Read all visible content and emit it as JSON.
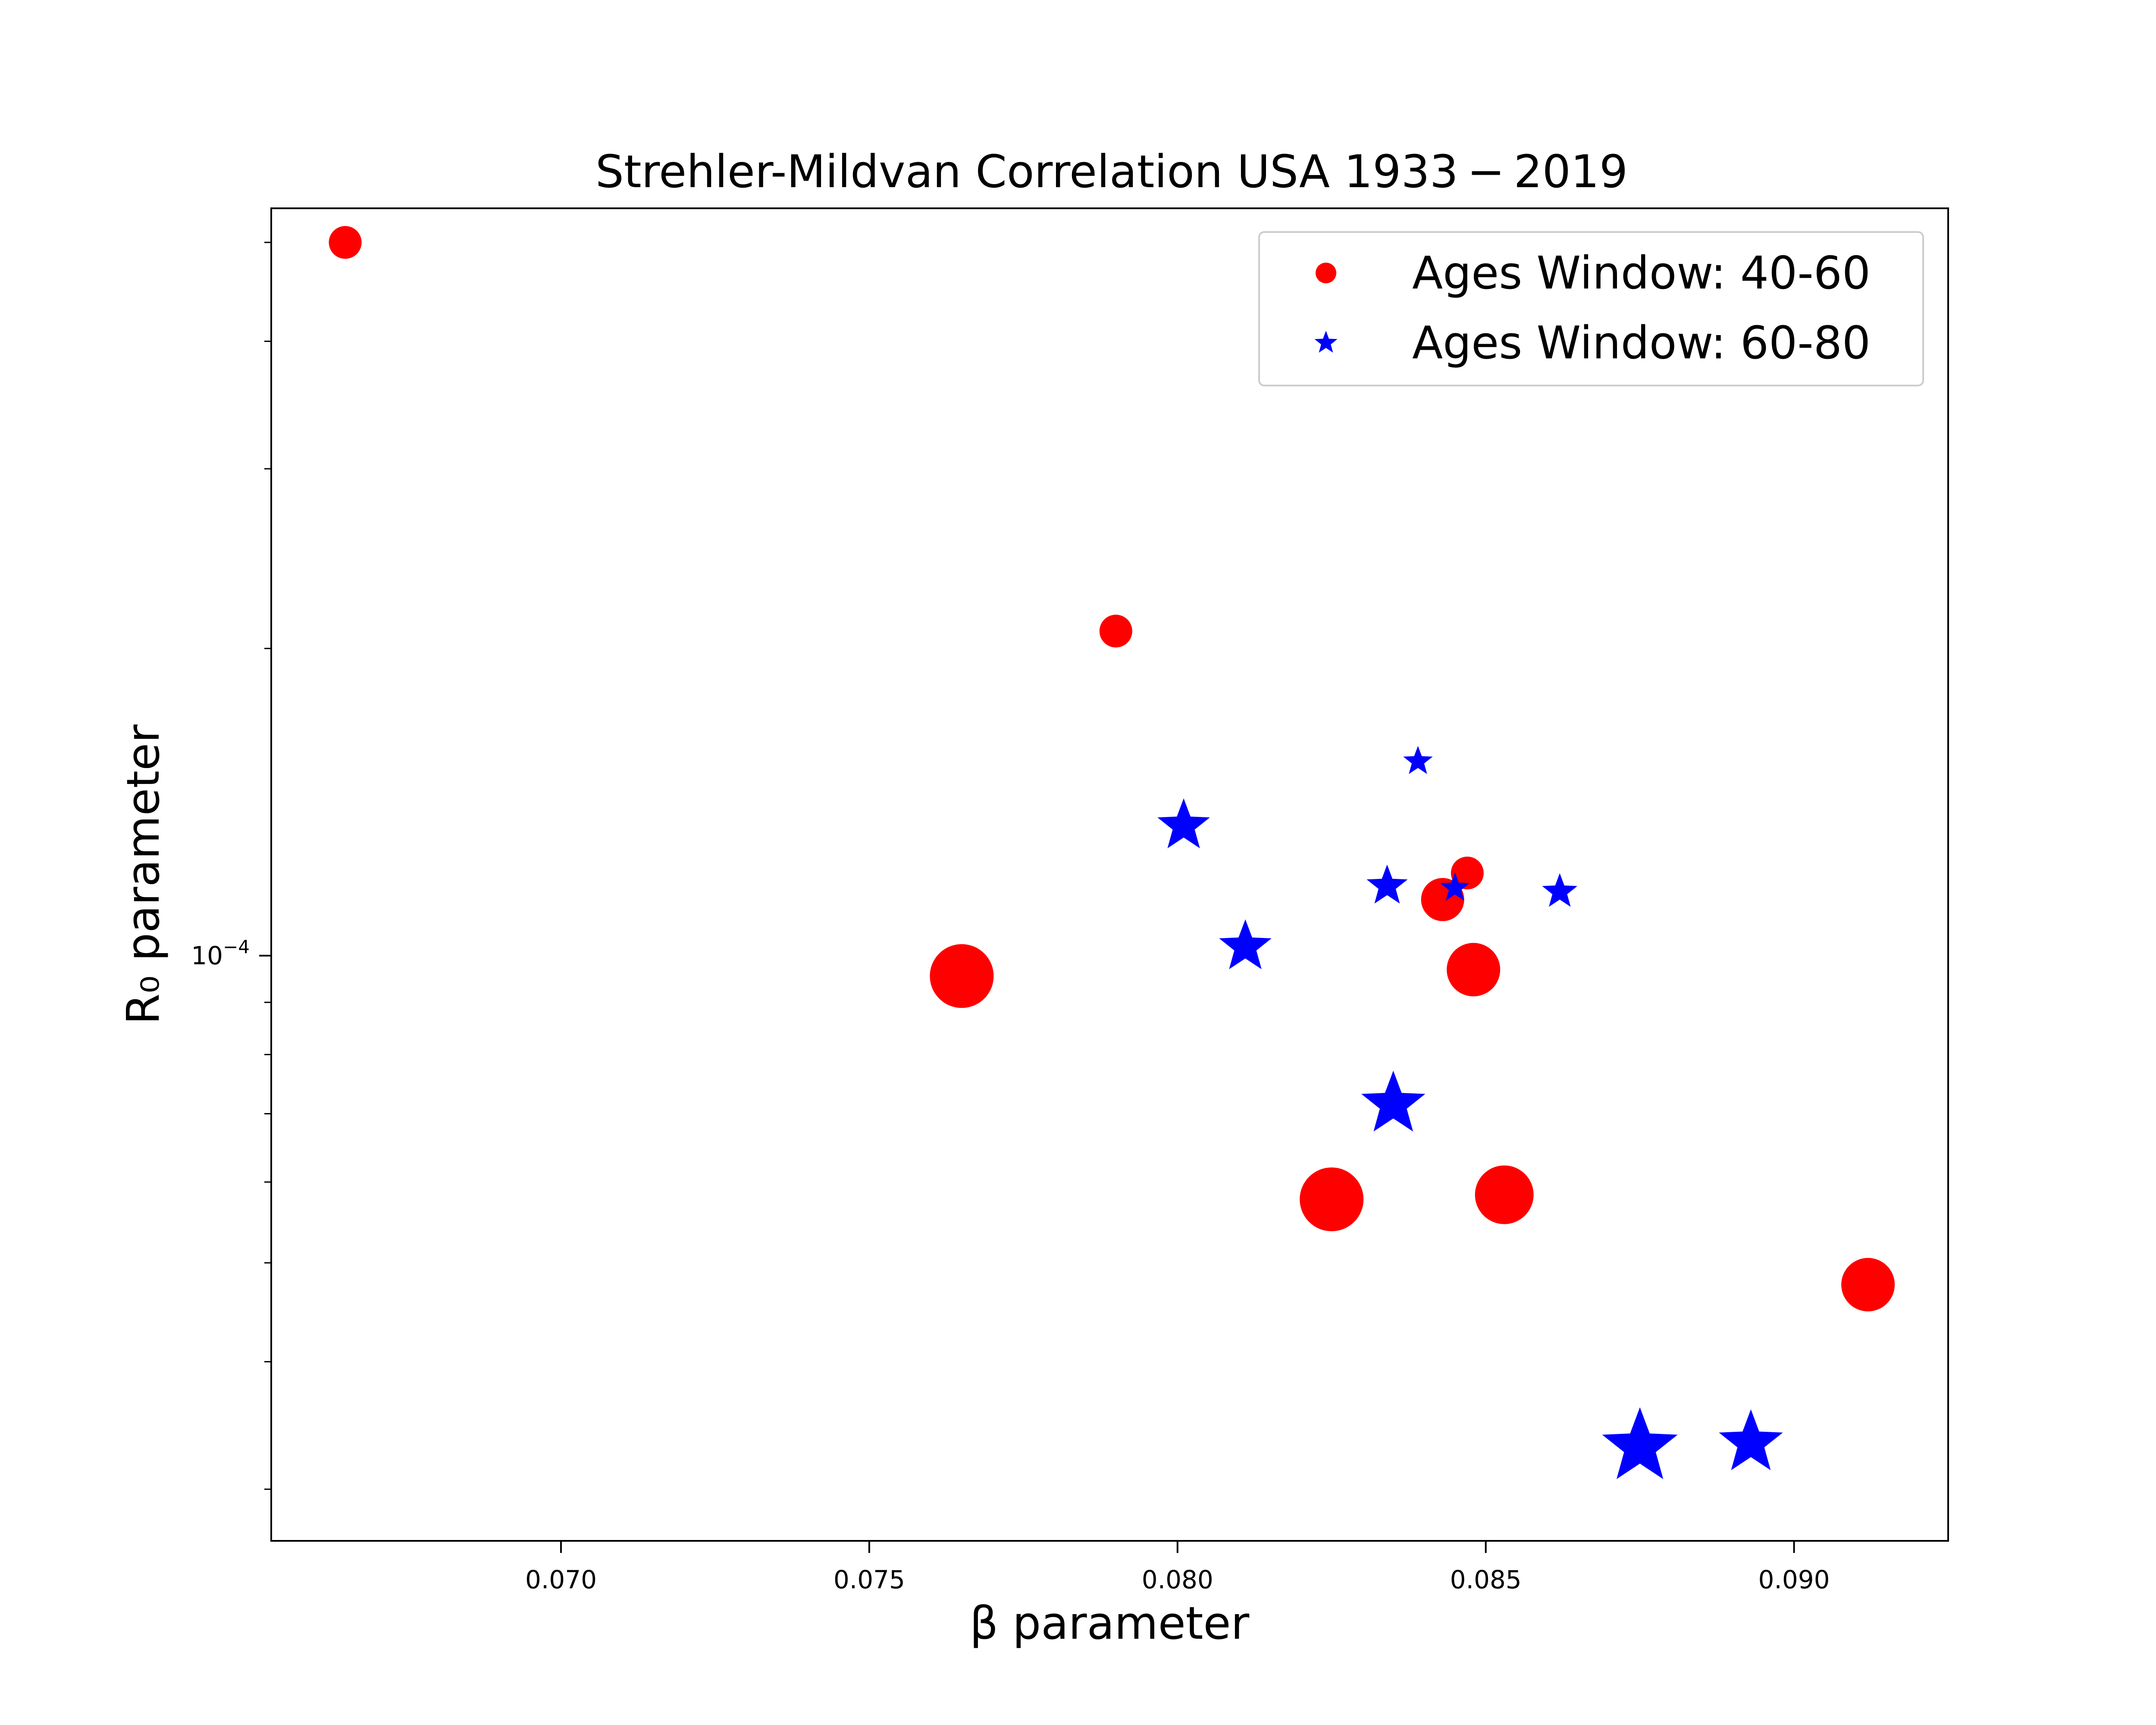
{
  "chart_data": {
    "type": "scatter",
    "title": "Strehler-Mildvan Correlation USA 1933 − 2019",
    "xlabel": "β parameter",
    "ylabel": "R₀ parameter",
    "y_scale": "log",
    "xlim": [
      0.0653,
      0.0925
    ],
    "ylim": [
      2.67e-05,
      0.00054
    ],
    "x_ticks": [
      0.07,
      0.075,
      0.08,
      0.085,
      0.09
    ],
    "x_tick_labels": [
      "0.070",
      "0.075",
      "0.080",
      "0.085",
      "0.090"
    ],
    "y_major_ticks": [
      0.0001
    ],
    "y_tick_labels": [
      "10⁻⁴"
    ],
    "y_tick_base": "10",
    "y_tick_exponent": "−4",
    "y_minor_ticks": [
      2e-05,
      3e-05,
      4e-05,
      5e-05,
      6e-05,
      7e-05,
      8e-05,
      9e-05,
      0.0002,
      0.0003,
      0.0004,
      0.0005
    ],
    "grid": false,
    "legend_position": "upper right",
    "series": [
      {
        "name": "Ages Window: 40-60",
        "marker": "circle",
        "color": "#ff0000",
        "points": [
          {
            "x": 0.0665,
            "y": 0.0005,
            "size": 2
          },
          {
            "x": 0.0765,
            "y": 9.55e-05,
            "size": 5
          },
          {
            "x": 0.079,
            "y": 0.000208,
            "size": 2
          },
          {
            "x": 0.0825,
            "y": 5.77e-05,
            "size": 5
          },
          {
            "x": 0.0843,
            "y": 0.0001135,
            "size": 3
          },
          {
            "x": 0.0847,
            "y": 0.0001205,
            "size": 2
          },
          {
            "x": 0.0848,
            "y": 9.69e-05,
            "size": 4
          },
          {
            "x": 0.0853,
            "y": 5.83e-05,
            "size": 4.5
          },
          {
            "x": 0.0912,
            "y": 4.76e-05,
            "size": 4
          }
        ]
      },
      {
        "name": "Ages Window: 60-80",
        "marker": "star",
        "color": "#0000ff",
        "points": [
          {
            "x": 0.0801,
            "y": 0.000134,
            "size": 3
          },
          {
            "x": 0.0811,
            "y": 0.000102,
            "size": 3
          },
          {
            "x": 0.0834,
            "y": 0.000117,
            "size": 2
          },
          {
            "x": 0.0835,
            "y": 7.15e-05,
            "size": 4
          },
          {
            "x": 0.0839,
            "y": 0.000155,
            "size": 1
          },
          {
            "x": 0.0845,
            "y": 0.0001165,
            "size": 1
          },
          {
            "x": 0.0862,
            "y": 0.0001155,
            "size": 1.5
          },
          {
            "x": 0.0875,
            "y": 3.3e-05,
            "size": 5
          },
          {
            "x": 0.0893,
            "y": 3.33e-05,
            "size": 4
          }
        ]
      }
    ]
  }
}
